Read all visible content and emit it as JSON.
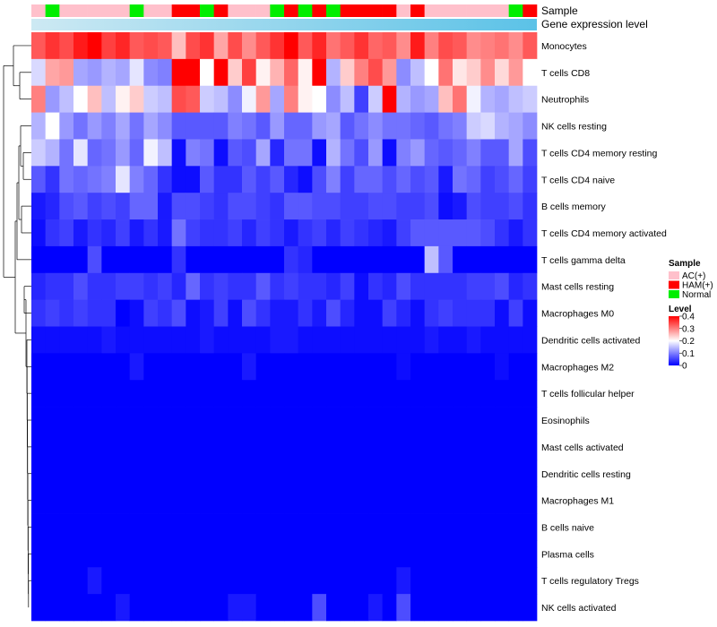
{
  "chart_data": {
    "type": "heatmap",
    "title": "",
    "annotations": {
      "sample_label": "Sample",
      "expression_label": "Gene expression level",
      "samples": [
        "AC(+)",
        "Normal",
        "AC(+)",
        "AC(+)",
        "AC(+)",
        "AC(+)",
        "AC(+)",
        "Normal",
        "AC(+)",
        "AC(+)",
        "HAM(+)",
        "HAM(+)",
        "Normal",
        "HAM(+)",
        "AC(+)",
        "AC(+)",
        "AC(+)",
        "Normal",
        "HAM(+)",
        "Normal",
        "HAM(+)",
        "Normal",
        "HAM(+)",
        "HAM(+)",
        "HAM(+)",
        "HAM(+)",
        "AC(+)",
        "HAM(+)",
        "AC(+)",
        "AC(+)",
        "AC(+)",
        "AC(+)",
        "AC(+)",
        "AC(+)",
        "Normal",
        "HAM(+)"
      ]
    },
    "rows": [
      "Monocytes",
      "T cells CD8",
      "Neutrophils",
      "NK cells resting",
      "T cells CD4 memory resting",
      "T cells CD4 naive",
      "B cells memory",
      "T cells CD4 memory activated",
      "T cells gamma delta",
      "Mast cells resting",
      "Macrophages M0",
      "Dendritic cells activated",
      "Macrophages M2",
      "T cells follicular helper",
      "Eosinophils",
      "Mast cells activated",
      "Dendritic cells resting",
      "Macrophages M1",
      "B cells naive",
      "Plasma cells",
      "T cells regulatory  Tregs",
      "NK cells activated"
    ],
    "values": [
      [
        0.33,
        0.36,
        0.34,
        0.38,
        0.4,
        0.35,
        0.37,
        0.33,
        0.34,
        0.33,
        0.25,
        0.34,
        0.36,
        0.27,
        0.34,
        0.29,
        0.33,
        0.36,
        0.4,
        0.33,
        0.37,
        0.31,
        0.33,
        0.36,
        0.32,
        0.33,
        0.29,
        0.38,
        0.3,
        0.34,
        0.33,
        0.29,
        0.3,
        0.31,
        0.29,
        0.33
      ],
      [
        0.17,
        0.27,
        0.28,
        0.13,
        0.12,
        0.14,
        0.13,
        0.18,
        0.11,
        0.1,
        0.4,
        0.4,
        0.2,
        0.4,
        0.24,
        0.35,
        0.21,
        0.26,
        0.32,
        0.21,
        0.4,
        0.14,
        0.24,
        0.3,
        0.34,
        0.28,
        0.11,
        0.15,
        0.2,
        0.31,
        0.22,
        0.24,
        0.29,
        0.23,
        0.28,
        0.2
      ],
      [
        0.3,
        0.12,
        0.15,
        0.2,
        0.25,
        0.15,
        0.21,
        0.24,
        0.16,
        0.15,
        0.34,
        0.33,
        0.16,
        0.15,
        0.11,
        0.19,
        0.28,
        0.13,
        0.3,
        0.21,
        0.2,
        0.11,
        0.15,
        0.05,
        0.16,
        0.4,
        0.14,
        0.12,
        0.13,
        0.25,
        0.31,
        0.19,
        0.14,
        0.13,
        0.15,
        0.16
      ],
      [
        0.14,
        0.2,
        0.12,
        0.09,
        0.12,
        0.1,
        0.13,
        0.09,
        0.13,
        0.11,
        0.07,
        0.07,
        0.07,
        0.07,
        0.1,
        0.09,
        0.07,
        0.12,
        0.08,
        0.08,
        0.12,
        0.13,
        0.07,
        0.09,
        0.11,
        0.09,
        0.09,
        0.08,
        0.07,
        0.09,
        0.1,
        0.16,
        0.17,
        0.14,
        0.13,
        0.11
      ],
      [
        0.16,
        0.14,
        0.09,
        0.18,
        0.08,
        0.09,
        0.12,
        0.08,
        0.19,
        0.15,
        0.01,
        0.1,
        0.09,
        0.01,
        0.07,
        0.06,
        0.13,
        0.03,
        0.09,
        0.09,
        0.01,
        0.14,
        0.09,
        0.06,
        0.12,
        0.01,
        0.1,
        0.12,
        0.08,
        0.07,
        0.08,
        0.1,
        0.07,
        0.07,
        0.13,
        0.06
      ],
      [
        0.07,
        0.04,
        0.09,
        0.08,
        0.09,
        0.1,
        0.18,
        0.1,
        0.08,
        0.04,
        0.01,
        0.01,
        0.07,
        0.04,
        0.04,
        0.07,
        0.05,
        0.07,
        0.03,
        0.01,
        0.06,
        0.1,
        0.05,
        0.08,
        0.08,
        0.06,
        0.08,
        0.06,
        0.07,
        0.02,
        0.09,
        0.08,
        0.05,
        0.06,
        0.08,
        0.05
      ],
      [
        0.02,
        0.03,
        0.06,
        0.07,
        0.05,
        0.06,
        0.05,
        0.08,
        0.08,
        0.02,
        0.06,
        0.06,
        0.05,
        0.04,
        0.06,
        0.06,
        0.05,
        0.04,
        0.07,
        0.07,
        0.06,
        0.06,
        0.05,
        0.05,
        0.06,
        0.06,
        0.05,
        0.05,
        0.06,
        0.01,
        0.02,
        0.06,
        0.05,
        0.05,
        0.06,
        0.04
      ],
      [
        0.01,
        0.04,
        0.05,
        0.02,
        0.04,
        0.03,
        0.05,
        0.02,
        0.04,
        0.02,
        0.09,
        0.05,
        0.04,
        0.04,
        0.05,
        0.03,
        0.05,
        0.04,
        0.02,
        0.04,
        0.05,
        0.03,
        0.05,
        0.04,
        0.03,
        0.02,
        0.05,
        0.07,
        0.07,
        0.07,
        0.07,
        0.07,
        0.06,
        0.04,
        0.02,
        0.04
      ],
      [
        0.0,
        0.0,
        0.0,
        0.0,
        0.06,
        0.0,
        0.0,
        0.0,
        0.0,
        0.0,
        0.04,
        0.0,
        0.0,
        0.0,
        0.0,
        0.0,
        0.0,
        0.0,
        0.04,
        0.03,
        0.0,
        0.0,
        0.0,
        0.0,
        0.0,
        0.0,
        0.0,
        0.0,
        0.15,
        0.07,
        0.0,
        0.0,
        0.0,
        0.0,
        0.0,
        0.0
      ],
      [
        0.03,
        0.04,
        0.04,
        0.06,
        0.04,
        0.04,
        0.05,
        0.05,
        0.04,
        0.05,
        0.03,
        0.08,
        0.04,
        0.05,
        0.04,
        0.04,
        0.07,
        0.04,
        0.05,
        0.04,
        0.04,
        0.03,
        0.05,
        0.01,
        0.04,
        0.03,
        0.06,
        0.04,
        0.04,
        0.04,
        0.04,
        0.05,
        0.05,
        0.06,
        0.03,
        0.04
      ],
      [
        0.04,
        0.05,
        0.04,
        0.05,
        0.04,
        0.04,
        0.0,
        0.01,
        0.05,
        0.04,
        0.06,
        0.01,
        0.02,
        0.05,
        0.01,
        0.06,
        0.04,
        0.02,
        0.02,
        0.04,
        0.02,
        0.06,
        0.03,
        0.01,
        0.01,
        0.05,
        0.03,
        0.01,
        0.04,
        0.05,
        0.04,
        0.04,
        0.04,
        0.01,
        0.05,
        0.01
      ],
      [
        0.01,
        0.01,
        0.01,
        0.01,
        0.01,
        0.02,
        0.01,
        0.01,
        0.01,
        0.01,
        0.01,
        0.01,
        0.02,
        0.01,
        0.01,
        0.01,
        0.01,
        0.02,
        0.02,
        0.01,
        0.01,
        0.01,
        0.01,
        0.01,
        0.01,
        0.01,
        0.01,
        0.01,
        0.02,
        0.01,
        0.01,
        0.02,
        0.01,
        0.01,
        0.01,
        0.01
      ],
      [
        0.0,
        0.0,
        0.0,
        0.0,
        0.0,
        0.0,
        0.0,
        0.02,
        0.0,
        0.0,
        0.0,
        0.0,
        0.0,
        0.0,
        0.0,
        0.02,
        0.0,
        0.0,
        0.0,
        0.0,
        0.0,
        0.0,
        0.0,
        0.0,
        0.0,
        0.0,
        0.01,
        0.0,
        0.0,
        0.0,
        0.0,
        0.0,
        0.0,
        0.01,
        0.0,
        0.0
      ],
      [
        0.0,
        0.0,
        0.0,
        0.0,
        0.0,
        0.0,
        0.0,
        0.0,
        0.0,
        0.0,
        0.0,
        0.0,
        0.0,
        0.0,
        0.0,
        0.0,
        0.0,
        0.0,
        0.0,
        0.0,
        0.0,
        0.0,
        0.0,
        0.0,
        0.0,
        0.0,
        0.0,
        0.0,
        0.0,
        0.0,
        0.0,
        0.0,
        0.0,
        0.0,
        0.0,
        0.0
      ],
      [
        0.0,
        0.0,
        0.0,
        0.0,
        0.0,
        0.0,
        0.0,
        0.0,
        0.0,
        0.0,
        0.0,
        0.0,
        0.0,
        0.0,
        0.0,
        0.0,
        0.0,
        0.0,
        0.0,
        0.0,
        0.0,
        0.0,
        0.0,
        0.0,
        0.0,
        0.0,
        0.0,
        0.0,
        0.0,
        0.0,
        0.0,
        0.0,
        0.0,
        0.0,
        0.0,
        0.0
      ],
      [
        0.0,
        0.0,
        0.0,
        0.0,
        0.0,
        0.0,
        0.0,
        0.0,
        0.0,
        0.0,
        0.0,
        0.0,
        0.0,
        0.0,
        0.0,
        0.0,
        0.0,
        0.0,
        0.0,
        0.0,
        0.0,
        0.0,
        0.0,
        0.0,
        0.0,
        0.0,
        0.0,
        0.0,
        0.0,
        0.0,
        0.0,
        0.0,
        0.0,
        0.0,
        0.0,
        0.0
      ],
      [
        0.0,
        0.0,
        0.0,
        0.0,
        0.0,
        0.0,
        0.0,
        0.0,
        0.0,
        0.0,
        0.0,
        0.0,
        0.0,
        0.0,
        0.0,
        0.0,
        0.0,
        0.0,
        0.0,
        0.0,
        0.0,
        0.0,
        0.0,
        0.0,
        0.0,
        0.0,
        0.0,
        0.0,
        0.0,
        0.0,
        0.0,
        0.0,
        0.0,
        0.0,
        0.0,
        0.0
      ],
      [
        0.0,
        0.0,
        0.0,
        0.0,
        0.0,
        0.0,
        0.0,
        0.0,
        0.0,
        0.0,
        0.0,
        0.0,
        0.0,
        0.0,
        0.0,
        0.0,
        0.0,
        0.0,
        0.0,
        0.0,
        0.0,
        0.0,
        0.0,
        0.0,
        0.0,
        0.0,
        0.0,
        0.0,
        0.0,
        0.0,
        0.0,
        0.0,
        0.0,
        0.0,
        0.0,
        0.0
      ],
      [
        0.0,
        0.0,
        0.0,
        0.0,
        0.0,
        0.0,
        0.0,
        0.0,
        0.0,
        0.0,
        0.0,
        0.0,
        0.0,
        0.0,
        0.0,
        0.0,
        0.0,
        0.0,
        0.0,
        0.0,
        0.0,
        0.0,
        0.0,
        0.0,
        0.0,
        0.0,
        0.0,
        0.0,
        0.0,
        0.0,
        0.0,
        0.0,
        0.0,
        0.0,
        0.0,
        0.0
      ],
      [
        0.0,
        0.0,
        0.0,
        0.0,
        0.0,
        0.0,
        0.0,
        0.0,
        0.0,
        0.0,
        0.0,
        0.0,
        0.0,
        0.0,
        0.0,
        0.0,
        0.0,
        0.0,
        0.0,
        0.0,
        0.0,
        0.0,
        0.0,
        0.0,
        0.0,
        0.0,
        0.0,
        0.0,
        0.0,
        0.0,
        0.0,
        0.0,
        0.0,
        0.0,
        0.0,
        0.0
      ],
      [
        0.0,
        0.0,
        0.0,
        0.0,
        0.02,
        0.0,
        0.0,
        0.0,
        0.0,
        0.0,
        0.0,
        0.0,
        0.0,
        0.0,
        0.0,
        0.0,
        0.0,
        0.0,
        0.0,
        0.0,
        0.0,
        0.0,
        0.0,
        0.0,
        0.0,
        0.0,
        0.02,
        0.0,
        0.0,
        0.0,
        0.0,
        0.0,
        0.0,
        0.0,
        0.0,
        0.0
      ],
      [
        0.0,
        0.0,
        0.0,
        0.0,
        0.0,
        0.0,
        0.02,
        0.0,
        0.0,
        0.0,
        0.0,
        0.0,
        0.0,
        0.0,
        0.02,
        0.02,
        0.0,
        0.0,
        0.0,
        0.0,
        0.06,
        0.0,
        0.0,
        0.0,
        0.02,
        0.0,
        0.06,
        0.0,
        0.0,
        0.0,
        0.0,
        0.0,
        0.0,
        0.0,
        0.0,
        0.0
      ]
    ],
    "color_scale": {
      "min": 0,
      "max": 0.4,
      "stops": [
        {
          "value": 0,
          "color": "#0000FF"
        },
        {
          "value": 0.2,
          "color": "#FFFFFF"
        },
        {
          "value": 0.4,
          "color": "#FF0000"
        }
      ]
    },
    "legend": {
      "position": "right",
      "sample_title": "Sample",
      "sample_entries": [
        {
          "label": "AC(+)",
          "color": "#FFC0CB"
        },
        {
          "label": "HAM(+)",
          "color": "#FF0000"
        },
        {
          "label": "Normal",
          "color": "#00EE00"
        }
      ],
      "level_title": "Level",
      "level_ticks": [
        "0.4",
        "0.3",
        "0.2",
        "0.1",
        "0"
      ]
    },
    "expression_bar_color": "#5BC2E7",
    "expression_bar_light": "#CDE9F3"
  }
}
